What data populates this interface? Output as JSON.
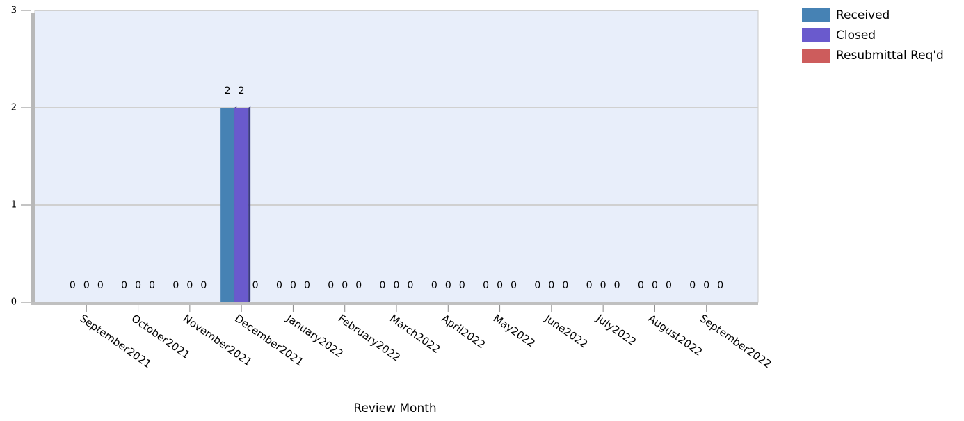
{
  "chart_data": {
    "type": "bar",
    "x_label": "Review Month",
    "categories": [
      "September2021",
      "October2021",
      "November2021",
      "December2021",
      "January2022",
      "February2022",
      "March2022",
      "April2022",
      "May2022",
      "June2022",
      "July2022",
      "August2022",
      "September2022"
    ],
    "series": [
      {
        "name": "Received",
        "color": "#4682b4",
        "values": [
          0,
          0,
          0,
          2,
          0,
          0,
          0,
          0,
          0,
          0,
          0,
          0,
          0
        ]
      },
      {
        "name": "Closed",
        "color": "#6a5acd",
        "values": [
          0,
          0,
          0,
          2,
          0,
          0,
          0,
          0,
          0,
          0,
          0,
          0,
          0
        ]
      },
      {
        "name": "Resubmittal Req'd",
        "color": "#cd5c5c",
        "values": [
          0,
          0,
          0,
          0,
          0,
          0,
          0,
          0,
          0,
          0,
          0,
          0,
          0
        ]
      }
    ],
    "ylim": [
      0,
      3
    ],
    "yticks": [
      0,
      1,
      2,
      3
    ],
    "grid": true,
    "legend": "top-right"
  }
}
